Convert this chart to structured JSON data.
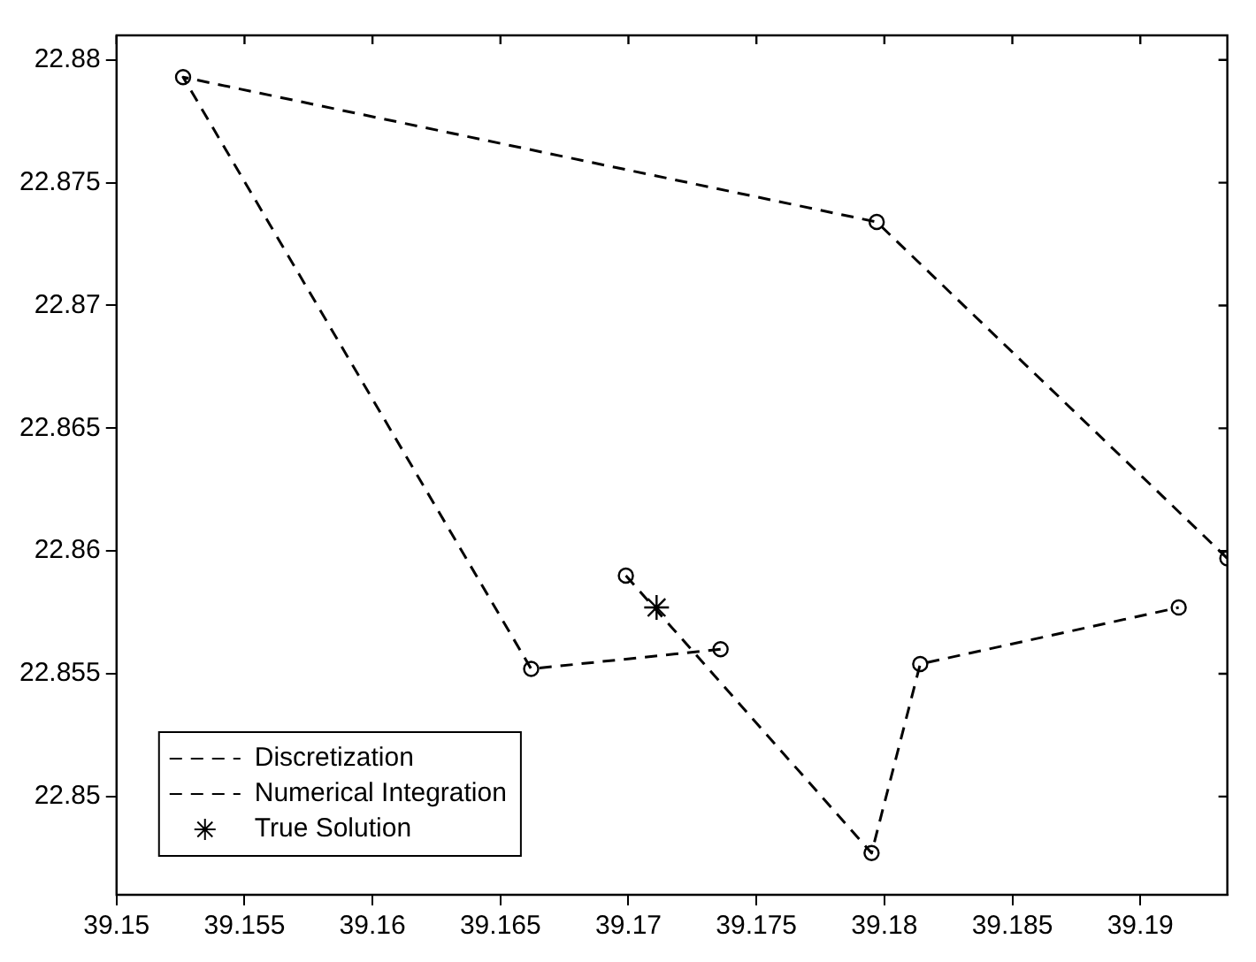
{
  "chart_data": {
    "type": "line",
    "xlim": [
      39.15,
      39.1934
    ],
    "xticks": [
      39.15,
      39.155,
      39.16,
      39.165,
      39.17,
      39.175,
      39.18,
      39.185,
      39.19
    ],
    "ylim": [
      22.846,
      22.881
    ],
    "yticks": [
      22.85,
      22.855,
      22.86,
      22.865,
      22.87,
      22.875,
      22.88
    ],
    "grid": false,
    "legend": "bottom left",
    "series": [
      {
        "name": "Discretization",
        "color": "#000000",
        "line_style": "dashed",
        "marker": "circle",
        "x": [
          39.1736,
          39.1662,
          39.1526,
          39.1797,
          39.1934
        ],
        "values": [
          22.856,
          22.8552,
          22.8793,
          22.8734,
          22.8597
        ]
      },
      {
        "name": "Numerical Integration",
        "color": "#000000",
        "line_style": "dashed",
        "marker": "circle",
        "x": [
          39.1699,
          39.1795,
          39.1814,
          39.1915
        ],
        "values": [
          22.859,
          22.8477,
          22.8554,
          22.8577
        ]
      },
      {
        "name": "True Solution",
        "type": "scatter",
        "color": "#000000",
        "marker": "cross",
        "x": [
          39.1711
        ],
        "values": [
          22.8577
        ]
      }
    ]
  }
}
